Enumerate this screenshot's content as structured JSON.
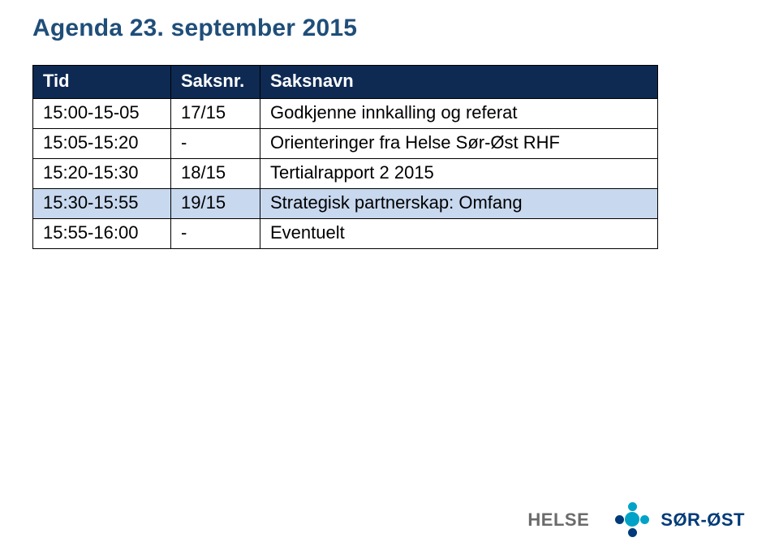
{
  "title": "Agenda 23. september 2015",
  "columns": [
    "Tid",
    "Saksnr.",
    "Saksnavn"
  ],
  "rows": [
    {
      "tid": "15:00-15-05",
      "nr": "17/15",
      "navn": "Godkjenne innkalling og referat",
      "hl": false
    },
    {
      "tid": "15:05-15:20",
      "nr": "-",
      "navn": "Orienteringer fra Helse Sør-Øst RHF",
      "hl": false
    },
    {
      "tid": "15:20-15:30",
      "nr": "18/15",
      "navn": "Tertialrapport 2 2015",
      "hl": false
    },
    {
      "tid": "15:30-15:55",
      "nr": "19/15",
      "navn": "Strategisk partnerskap: Omfang",
      "hl": true
    },
    {
      "tid": "15:55-16:00",
      "nr": "-",
      "navn": "Eventuelt",
      "hl": false
    }
  ],
  "logo": {
    "left": "HELSE",
    "right": "SØR-ØST"
  }
}
